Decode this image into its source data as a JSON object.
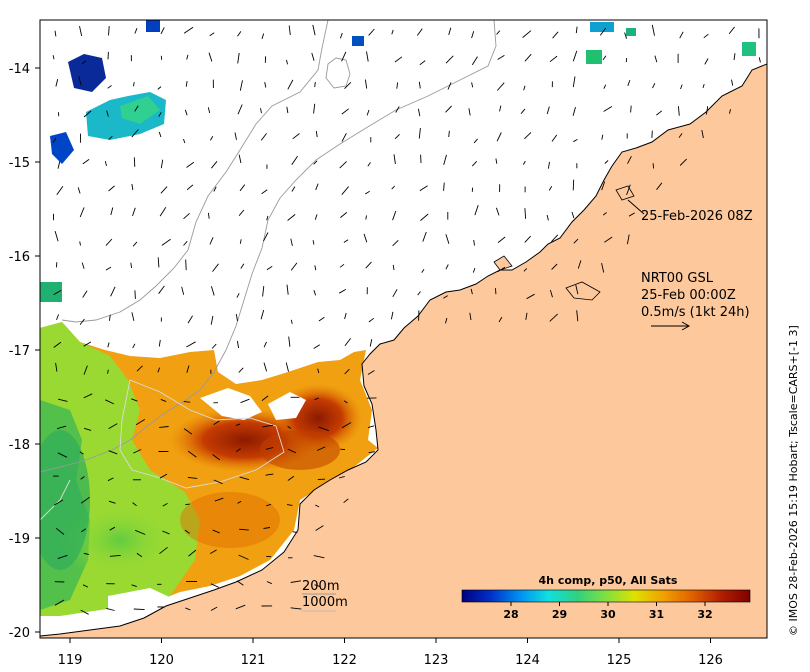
{
  "map": {
    "x_ticks": [
      "119",
      "120",
      "121",
      "122",
      "123",
      "124",
      "125",
      "126"
    ],
    "y_ticks": [
      "-14",
      "-15",
      "-16",
      "-17",
      "-18",
      "-19",
      "-20"
    ],
    "colors": {
      "land": "#fdc89b",
      "coast": "#000000",
      "isobath": "#9a9a9a",
      "arrow": "#000000"
    }
  },
  "annotations": {
    "image_time": "25-Feb-2026 08Z",
    "product": "NRT00 GSL",
    "product_date": "25-Feb 00:00Z",
    "scale_note": "0.5m/s (1kt 24h)"
  },
  "isobath_legend": {
    "shallow": "200m",
    "deep": "1000m"
  },
  "colorbar": {
    "title": "4h comp, p50, All Sats",
    "ticks": [
      "28",
      "29",
      "30",
      "31",
      "32"
    ],
    "stops": [
      "#00007f",
      "#0030c8",
      "#0090f0",
      "#10e0e0",
      "#30d080",
      "#80e040",
      "#e0e000",
      "#f0a000",
      "#e06000",
      "#b02000",
      "#7f0000"
    ]
  },
  "credit": "© IMOS 28-Feb-2026 15:19 Hobart; Tscale=CARS+[-1 3]"
}
